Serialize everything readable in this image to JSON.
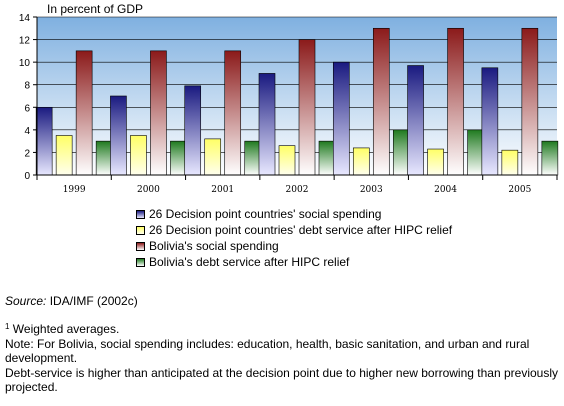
{
  "chart_data": {
    "type": "bar",
    "title": "",
    "ylabel": "In percent of GDP",
    "xlabel": "",
    "ylim": [
      0,
      14
    ],
    "yticks": [
      0,
      2,
      4,
      6,
      8,
      10,
      12,
      14
    ],
    "grid": true,
    "legend_position": "bottom",
    "categories": [
      "1999",
      "2000",
      "2001",
      "2002",
      "2003",
      "2004",
      "2005"
    ],
    "series": [
      {
        "name": "26 Decision point countries' social spending",
        "values": [
          6.0,
          7.0,
          7.9,
          9.0,
          10.0,
          9.7,
          9.5
        ],
        "color_top": "#1a1a80",
        "color_bottom": "#e8e8ff"
      },
      {
        "name": "26 Decision point countries' debt service after HIPC relief",
        "values": [
          3.5,
          3.5,
          3.2,
          2.6,
          2.4,
          2.3,
          2.2
        ],
        "color_top": "#ffff66",
        "color_bottom": "#ffffee"
      },
      {
        "name": "Bolivia's social spending",
        "values": [
          11.0,
          11.0,
          11.0,
          12.0,
          13.0,
          13.0,
          13.0
        ],
        "color_top": "#8b1a1a",
        "color_bottom": "#ffffff"
      },
      {
        "name": "Bolivia's debt service after HIPC relief",
        "values": [
          3.0,
          3.0,
          3.0,
          3.0,
          4.0,
          4.0,
          3.0
        ],
        "color_top": "#1f7a1f",
        "color_bottom": "#ffffff"
      }
    ]
  },
  "colors": {
    "plot_bg_top": "#7fb0e0",
    "plot_bg_bottom": "#ffffff"
  },
  "source": {
    "label": "Source:",
    "text": " IDA/IMF (2002c)"
  },
  "notes": {
    "footnote_mark": "1",
    "footnote": " Weighted averages.",
    "note1": "Note: For Bolivia, social spending includes: education, health, basic sanitation, and urban and rural development.",
    "note2": "Debt-service is higher than anticipated at the decision point due to higher new borrowing than previously projected."
  }
}
